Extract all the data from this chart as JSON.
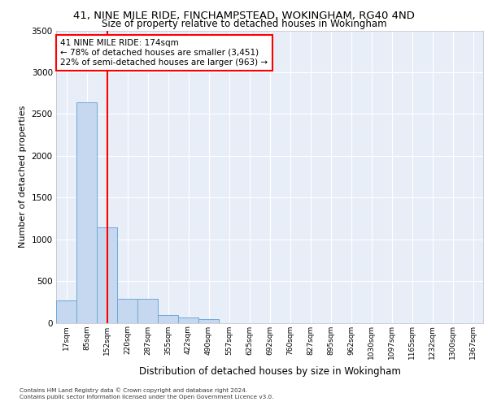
{
  "title1": "41, NINE MILE RIDE, FINCHAMPSTEAD, WOKINGHAM, RG40 4ND",
  "title2": "Size of property relative to detached houses in Wokingham",
  "xlabel": "Distribution of detached houses by size in Wokingham",
  "ylabel": "Number of detached properties",
  "bar_labels": [
    "17sqm",
    "85sqm",
    "152sqm",
    "220sqm",
    "287sqm",
    "355sqm",
    "422sqm",
    "490sqm",
    "557sqm",
    "625sqm",
    "692sqm",
    "760sqm",
    "827sqm",
    "895sqm",
    "962sqm",
    "1030sqm",
    "1097sqm",
    "1165sqm",
    "1232sqm",
    "1300sqm",
    "1367sqm"
  ],
  "bar_values": [
    270,
    2640,
    1140,
    285,
    285,
    95,
    60,
    40,
    0,
    0,
    0,
    0,
    0,
    0,
    0,
    0,
    0,
    0,
    0,
    0,
    0
  ],
  "bar_color": "#c5d8ef",
  "bar_edge_color": "#6fa8d8",
  "vline_x": 2.0,
  "vline_color": "red",
  "annotation_text": "41 NINE MILE RIDE: 174sqm\n← 78% of detached houses are smaller (3,451)\n22% of semi-detached houses are larger (963) →",
  "annotation_box_color": "white",
  "annotation_box_edge_color": "red",
  "ylim": [
    0,
    3500
  ],
  "yticks": [
    0,
    500,
    1000,
    1500,
    2000,
    2500,
    3000,
    3500
  ],
  "background_color": "#e8eef8",
  "grid_color": "white",
  "footer1": "Contains HM Land Registry data © Crown copyright and database right 2024.",
  "footer2": "Contains public sector information licensed under the Open Government Licence v3.0."
}
